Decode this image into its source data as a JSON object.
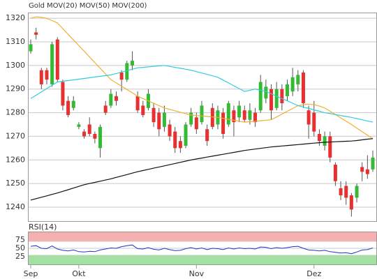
{
  "chart_data": [
    {
      "type": "candlestick",
      "name": "Gold",
      "up_color": "#33bb33",
      "down_color": "#e83030",
      "categories": [
        "Sep",
        null,
        null,
        null,
        null,
        null,
        null,
        null,
        null,
        "Okt",
        null,
        null,
        null,
        null,
        null,
        null,
        null,
        null,
        null,
        null,
        null,
        null,
        null,
        null,
        null,
        null,
        null,
        null,
        null,
        null,
        null,
        "Nov",
        null,
        null,
        null,
        null,
        null,
        null,
        null,
        null,
        null,
        null,
        null,
        null,
        null,
        null,
        null,
        null,
        null,
        null,
        null,
        null,
        null,
        "Dez",
        null,
        null,
        null,
        null,
        null,
        null,
        null,
        null,
        null,
        null,
        null
      ],
      "open": [
        1306,
        1314,
        1298,
        1298,
        1292,
        1311,
        1293,
        1285,
        1282,
        1274,
        1272,
        1275,
        1271,
        1265,
        1283,
        1283,
        1287,
        1297,
        1294,
        1300,
        1287,
        1283,
        1282,
        1282,
        1280,
        1274,
        1275,
        1272,
        1268,
        1266,
        1275,
        1278,
        1276,
        1273,
        1282,
        1275,
        1280,
        1275,
        1281,
        1278,
        1281,
        1277,
        1280,
        1281,
        1286,
        1290,
        1282,
        1290,
        1287,
        1289,
        1292,
        1297,
        1281,
        1280,
        1271,
        1266,
        1270,
        1258,
        1248,
        1249,
        1245,
        1244,
        1257,
        1256,
        1256
      ],
      "high": [
        1311,
        1316,
        1299,
        1299,
        1310,
        1312,
        1294,
        1287,
        1287,
        1276,
        1273,
        1278,
        1272,
        1275,
        1285,
        1290,
        1289,
        1298,
        1302,
        1306,
        1289,
        1285,
        1290,
        1284,
        1282,
        1283,
        1277,
        1274,
        1270,
        1276,
        1282,
        1280,
        1285,
        1275,
        1284,
        1283,
        1282,
        1285,
        1283,
        1285,
        1283,
        1284,
        1282,
        1296,
        1294,
        1292,
        1293,
        1292,
        1294,
        1299,
        1298,
        1298,
        1283,
        1285,
        1273,
        1272,
        1272,
        1259,
        1251,
        1251,
        1246,
        1250,
        1259,
        1262,
        1264
      ],
      "low": [
        1305,
        1311,
        1290,
        1292,
        1291,
        1293,
        1281,
        1278,
        1281,
        1273,
        1269,
        1270,
        1267,
        1261,
        1279,
        1282,
        1283,
        1289,
        1293,
        1298,
        1280,
        1278,
        1281,
        1274,
        1270,
        1272,
        1268,
        1263,
        1263,
        1265,
        1274,
        1271,
        1275,
        1266,
        1273,
        1273,
        1269,
        1274,
        1270,
        1276,
        1276,
        1275,
        1274,
        1280,
        1284,
        1277,
        1281,
        1281,
        1285,
        1287,
        1289,
        1282,
        1269,
        1270,
        1266,
        1264,
        1259,
        1249,
        1243,
        1241,
        1236,
        1242,
        1251,
        1252,
        1255
      ],
      "close": [
        1309,
        1313,
        1292,
        1294,
        1309,
        1294,
        1283,
        1279,
        1285,
        1275,
        1270,
        1271,
        1269,
        1274,
        1280,
        1288,
        1285,
        1294,
        1301,
        1302,
        1281,
        1279,
        1288,
        1276,
        1273,
        1280,
        1270,
        1265,
        1265,
        1275,
        1280,
        1273,
        1283,
        1268,
        1274,
        1281,
        1271,
        1284,
        1276,
        1283,
        1277,
        1281,
        1276,
        1293,
        1291,
        1281,
        1290,
        1284,
        1292,
        1295,
        1296,
        1284,
        1275,
        1272,
        1268,
        1270,
        1261,
        1251,
        1245,
        1244,
        1239,
        1249,
        1255,
        1254,
        1261
      ],
      "lines": [
        {
          "name": "MOV(20)",
          "color": "#f0b030",
          "values": [
            1320,
            1320.6,
            1320.4,
            1319.9,
            1319,
            1318,
            1315.6,
            1313.2,
            1310.8,
            1308.4,
            1306,
            1303.6,
            1301.2,
            1298.8,
            1296.4,
            1294,
            1292.6,
            1291.2,
            1289.8,
            1288.4,
            1287,
            1286,
            1285,
            1284,
            1283,
            1282,
            1281.4,
            1280.8,
            1280.2,
            1279.6,
            1279,
            1278.8,
            1278.6,
            1278.4,
            1278.2,
            1278,
            1277.6,
            1277.2,
            1276.8,
            1276.4,
            1276,
            1276.2,
            1276.4,
            1276.6,
            1276.8,
            1277,
            1278.2,
            1279.4,
            1280.6,
            1281.8,
            1283,
            1283.4,
            1283.6,
            1283.4,
            1282.8,
            1282,
            1280.6,
            1279.2,
            1277.8,
            1276.4,
            1275,
            1273.5,
            1272,
            1270.5,
            1269
          ]
        },
        {
          "name": "MOV(50)",
          "color": "#33ccdd",
          "values": [
            1286,
            1287.4,
            1288.8,
            1290.2,
            1291.6,
            1293,
            1293.3,
            1293.6,
            1293.9,
            1294.2,
            1294.5,
            1294.8,
            1295.1,
            1295.4,
            1295.7,
            1296,
            1296.6,
            1297.2,
            1297.8,
            1298.4,
            1299,
            1299.2,
            1299.4,
            1299.6,
            1299.8,
            1300,
            1299.6,
            1299.2,
            1298.8,
            1298.4,
            1298,
            1297.4,
            1296.8,
            1296.2,
            1295.6,
            1295,
            1293.8,
            1292.6,
            1291.4,
            1290.2,
            1289,
            1289.5,
            1290,
            1289.5,
            1289,
            1288,
            1287,
            1286,
            1285,
            1284,
            1283,
            1282.4,
            1281.8,
            1281.2,
            1280.6,
            1280,
            1279.6,
            1279.2,
            1278.8,
            1278.4,
            1278,
            1277.5,
            1277,
            1276.5,
            1276
          ]
        },
        {
          "name": "MOV(200)",
          "color": "#111111",
          "values": [
            1243,
            1243.6,
            1244.2,
            1244.8,
            1245.4,
            1246,
            1246.7,
            1247.4,
            1248.1,
            1248.8,
            1249.5,
            1250,
            1250.5,
            1251,
            1251.5,
            1252,
            1252.6,
            1253.2,
            1253.8,
            1254.4,
            1255,
            1255.5,
            1256,
            1256.5,
            1257,
            1257.5,
            1258,
            1258.5,
            1259,
            1259.5,
            1260,
            1260.4,
            1260.8,
            1261.2,
            1261.6,
            1262,
            1262.4,
            1262.8,
            1263.2,
            1263.6,
            1264,
            1264.3,
            1264.6,
            1264.9,
            1265.2,
            1265.5,
            1265.7,
            1265.9,
            1266.1,
            1266.3,
            1266.5,
            1266.7,
            1266.9,
            1267.1,
            1267.3,
            1267.5,
            1267.6,
            1267.7,
            1267.8,
            1267.9,
            1268,
            1268.2,
            1268.5,
            1268.8,
            1269
          ]
        }
      ],
      "ylim": [
        1233.8,
        1322.4
      ],
      "yticks": [
        1240,
        1250,
        1260,
        1270,
        1280,
        1290,
        1300,
        1310,
        1320
      ],
      "grid": true
    },
    {
      "type": "line",
      "title": "RSI(14)",
      "series": [
        {
          "color": "#2233cc",
          "values": [
            56,
            58,
            50,
            49,
            57,
            48,
            44,
            42,
            45,
            40,
            39,
            41,
            40,
            45,
            48,
            51,
            50,
            55,
            58,
            60,
            49,
            48,
            52,
            47,
            45,
            50,
            46,
            43,
            44,
            49,
            52,
            48,
            51,
            46,
            50,
            49,
            46,
            51,
            48,
            51,
            49,
            50,
            48,
            54,
            53,
            49,
            52,
            50,
            52,
            55,
            56,
            50,
            45,
            44,
            42,
            44,
            40,
            38,
            36,
            37,
            34,
            39,
            45,
            46,
            51
          ]
        }
      ],
      "bands": [
        {
          "from": 70,
          "to": 100,
          "color": "#f4a0a0"
        },
        {
          "from": 0,
          "to": 30,
          "color": "#90dd90"
        }
      ],
      "ylim": [
        0,
        100
      ],
      "yticks": [
        25,
        50,
        75
      ],
      "grid": true
    }
  ]
}
